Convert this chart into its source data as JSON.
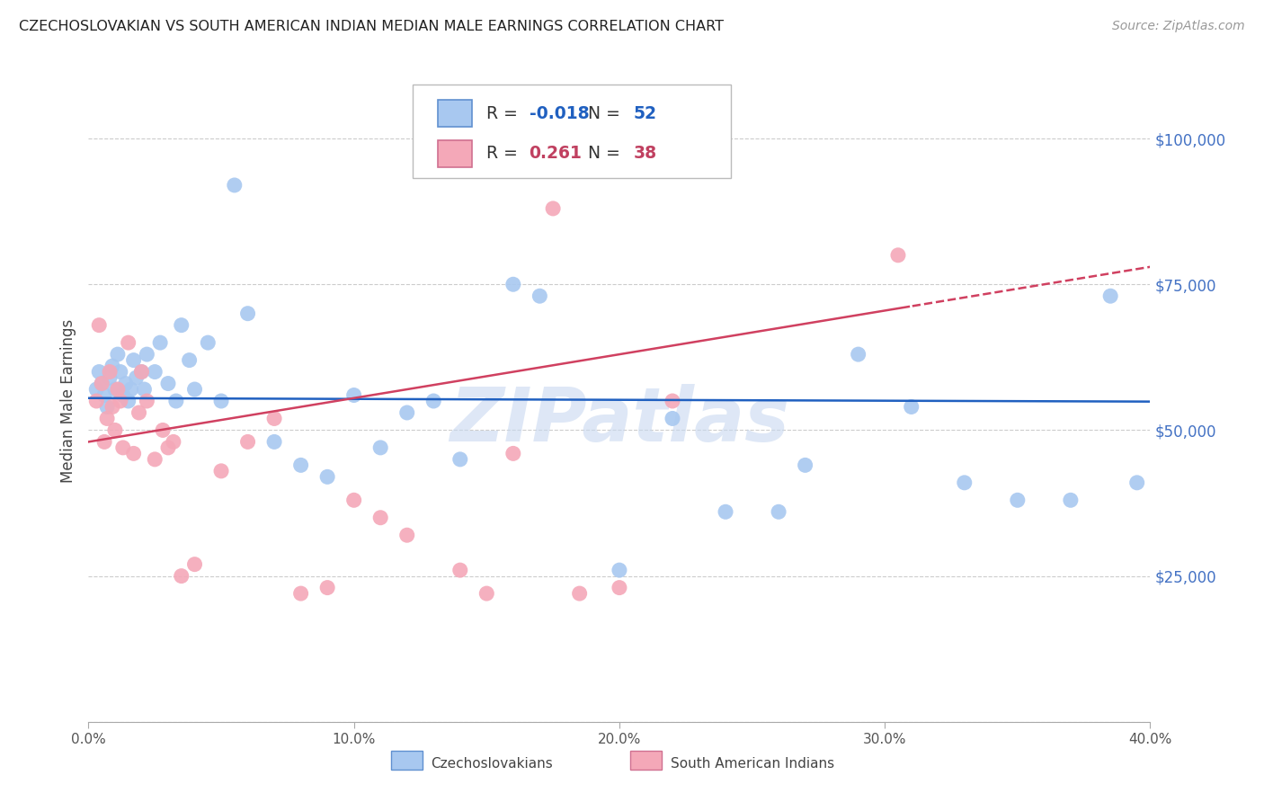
{
  "title": "CZECHOSLOVAKIAN VS SOUTH AMERICAN INDIAN MEDIAN MALE EARNINGS CORRELATION CHART",
  "source": "Source: ZipAtlas.com",
  "ylabel": "Median Male Earnings",
  "xmin": 0.0,
  "xmax": 0.4,
  "ymin": 0,
  "ymax": 110000,
  "blue_color": "#A8C8F0",
  "pink_color": "#F4A8B8",
  "blue_edge_color": "#6090D0",
  "pink_edge_color": "#D07090",
  "trend_blue_color": "#2060C0",
  "trend_pink_color": "#D04060",
  "watermark_color": "#C8D8F0",
  "legend_R_blue": "-0.018",
  "legend_N_blue": "52",
  "legend_R_pink": "0.261",
  "legend_N_pink": "38",
  "legend_num_color_blue": "#2060C0",
  "legend_num_color_pink": "#C04060",
  "right_tick_color": "#4472C4",
  "blue_x": [
    0.003,
    0.004,
    0.005,
    0.006,
    0.007,
    0.008,
    0.009,
    0.01,
    0.011,
    0.012,
    0.013,
    0.014,
    0.015,
    0.016,
    0.017,
    0.018,
    0.02,
    0.021,
    0.022,
    0.025,
    0.027,
    0.03,
    0.033,
    0.035,
    0.038,
    0.04,
    0.045,
    0.05,
    0.055,
    0.06,
    0.07,
    0.08,
    0.09,
    0.1,
    0.11,
    0.12,
    0.13,
    0.14,
    0.16,
    0.17,
    0.2,
    0.22,
    0.24,
    0.26,
    0.27,
    0.29,
    0.31,
    0.33,
    0.35,
    0.37,
    0.385,
    0.395
  ],
  "blue_y": [
    57000,
    60000,
    58000,
    56000,
    54000,
    59000,
    61000,
    57000,
    63000,
    60000,
    56000,
    58000,
    55000,
    57000,
    62000,
    59000,
    60000,
    57000,
    63000,
    60000,
    65000,
    58000,
    55000,
    68000,
    62000,
    57000,
    65000,
    55000,
    92000,
    70000,
    48000,
    44000,
    42000,
    56000,
    47000,
    53000,
    55000,
    45000,
    75000,
    73000,
    26000,
    52000,
    36000,
    36000,
    44000,
    63000,
    54000,
    41000,
    38000,
    38000,
    73000,
    41000
  ],
  "pink_x": [
    0.003,
    0.004,
    0.005,
    0.006,
    0.007,
    0.008,
    0.009,
    0.01,
    0.011,
    0.012,
    0.013,
    0.015,
    0.017,
    0.019,
    0.02,
    0.022,
    0.025,
    0.028,
    0.03,
    0.032,
    0.035,
    0.04,
    0.05,
    0.06,
    0.07,
    0.08,
    0.09,
    0.1,
    0.11,
    0.12,
    0.14,
    0.15,
    0.16,
    0.175,
    0.185,
    0.2,
    0.22,
    0.305
  ],
  "pink_y": [
    55000,
    68000,
    58000,
    48000,
    52000,
    60000,
    54000,
    50000,
    57000,
    55000,
    47000,
    65000,
    46000,
    53000,
    60000,
    55000,
    45000,
    50000,
    47000,
    48000,
    25000,
    27000,
    43000,
    48000,
    52000,
    22000,
    23000,
    38000,
    35000,
    32000,
    26000,
    22000,
    46000,
    88000,
    22000,
    23000,
    55000,
    80000
  ]
}
